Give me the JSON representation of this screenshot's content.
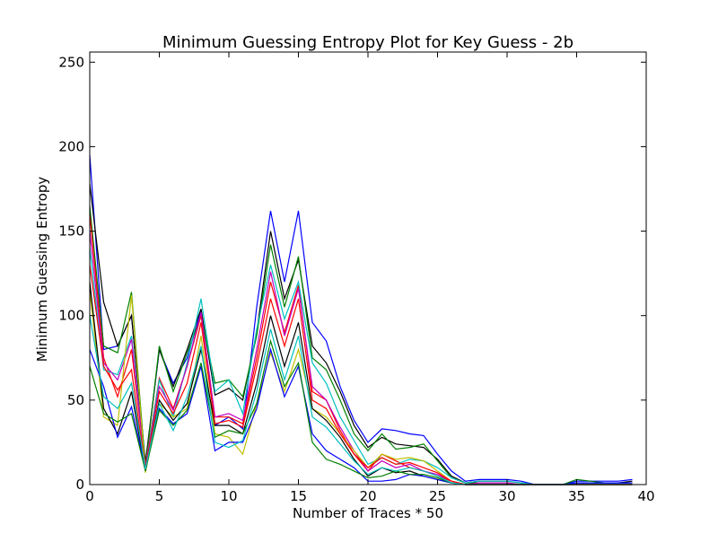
{
  "chart_data": {
    "type": "line",
    "title": "Minimum Guessing Entropy Plot for Key Guess - 2b",
    "xlabel": "Number of Traces * 50",
    "ylabel": "Minimum Guessing Entropy",
    "xlim": [
      0,
      40
    ],
    "ylim": [
      0,
      256
    ],
    "xticks": [
      "0",
      "5",
      "10",
      "15",
      "20",
      "25",
      "30",
      "35",
      "40"
    ],
    "yticks": [
      "0",
      "50",
      "100",
      "150",
      "200",
      "250"
    ],
    "grid": false,
    "legend": "none",
    "x": [
      0,
      1,
      2,
      3,
      4,
      5,
      6,
      7,
      8,
      9,
      10,
      11,
      12,
      13,
      14,
      15,
      16,
      17,
      18,
      19,
      20,
      21,
      22,
      23,
      24,
      25,
      26,
      27,
      28,
      29,
      30,
      31,
      32,
      33,
      34,
      35,
      36,
      37,
      38,
      39
    ],
    "series": [
      {
        "color": "#0000ff",
        "values": [
          195,
          80,
          82,
          100,
          12,
          80,
          60,
          75,
          103,
          35,
          40,
          33,
          105,
          162,
          120,
          162,
          96,
          85,
          58,
          38,
          25,
          33,
          32,
          30,
          29,
          18,
          8,
          2,
          3,
          3,
          3,
          2,
          0,
          0,
          0,
          2,
          2,
          2,
          2,
          3
        ]
      },
      {
        "color": "#000000",
        "values": [
          178,
          108,
          82,
          100,
          13,
          80,
          58,
          80,
          104,
          53,
          57,
          50,
          90,
          150,
          110,
          133,
          82,
          72,
          55,
          35,
          22,
          28,
          24,
          23,
          22,
          15,
          5,
          1,
          2,
          2,
          2,
          1,
          0,
          0,
          0,
          1,
          1,
          1,
          1,
          2
        ]
      },
      {
        "color": "#008000",
        "values": [
          165,
          82,
          78,
          114,
          10,
          82,
          55,
          78,
          100,
          60,
          62,
          52,
          88,
          142,
          105,
          135,
          75,
          68,
          50,
          30,
          20,
          30,
          21,
          22,
          24,
          14,
          4,
          1,
          1,
          1,
          1,
          0,
          0,
          0,
          0,
          3,
          2,
          1,
          1,
          1
        ]
      },
      {
        "color": "#ff0000",
        "values": [
          160,
          75,
          52,
          80,
          11,
          63,
          45,
          70,
          100,
          40,
          40,
          36,
          75,
          120,
          90,
          118,
          55,
          50,
          32,
          18,
          8,
          18,
          14,
          10,
          8,
          5,
          2,
          0,
          0,
          0,
          0,
          0,
          0,
          0,
          0,
          0,
          0,
          0,
          0,
          0
        ]
      },
      {
        "color": "#00bfbf",
        "values": [
          140,
          68,
          65,
          88,
          10,
          62,
          40,
          72,
          110,
          55,
          62,
          42,
          92,
          130,
          98,
          120,
          72,
          60,
          40,
          26,
          12,
          16,
          12,
          15,
          14,
          10,
          4,
          1,
          2,
          2,
          2,
          1,
          0,
          0,
          0,
          1,
          1,
          1,
          1,
          1
        ]
      },
      {
        "color": "#bf00bf",
        "values": [
          150,
          72,
          62,
          86,
          10,
          58,
          44,
          70,
          102,
          40,
          42,
          38,
          80,
          126,
          88,
          116,
          58,
          50,
          34,
          20,
          8,
          14,
          10,
          12,
          8,
          6,
          2,
          0,
          1,
          1,
          1,
          0,
          0,
          0,
          0,
          0,
          0,
          0,
          0,
          0
        ]
      },
      {
        "color": "#bfbf00",
        "values": [
          115,
          40,
          35,
          112,
          7,
          48,
          40,
          45,
          88,
          30,
          28,
          18,
          48,
          78,
          55,
          80,
          45,
          40,
          30,
          20,
          10,
          18,
          15,
          16,
          14,
          8,
          2,
          0,
          0,
          0,
          0,
          0,
          0,
          0,
          0,
          0,
          0,
          0,
          0,
          0
        ]
      },
      {
        "color": "#000000",
        "values": [
          120,
          45,
          30,
          55,
          8,
          50,
          38,
          48,
          80,
          35,
          35,
          30,
          60,
          100,
          70,
          96,
          45,
          38,
          28,
          15,
          5,
          10,
          7,
          8,
          5,
          3,
          1,
          0,
          0,
          0,
          0,
          0,
          0,
          0,
          0,
          0,
          0,
          0,
          0,
          0
        ]
      },
      {
        "color": "#0000ff",
        "values": [
          80,
          58,
          28,
          46,
          9,
          45,
          36,
          42,
          70,
          20,
          25,
          25,
          45,
          80,
          52,
          70,
          30,
          20,
          15,
          10,
          2,
          2,
          3,
          6,
          5,
          3,
          1,
          0,
          0,
          0,
          0,
          0,
          0,
          0,
          0,
          1,
          1,
          1,
          1,
          1
        ]
      },
      {
        "color": "#008000",
        "values": [
          70,
          42,
          37,
          42,
          8,
          44,
          35,
          44,
          72,
          28,
          32,
          30,
          48,
          85,
          58,
          72,
          25,
          15,
          12,
          8,
          4,
          5,
          8,
          6,
          6,
          4,
          1,
          0,
          0,
          0,
          0,
          0,
          0,
          0,
          0,
          0,
          0,
          0,
          0,
          0
        ]
      },
      {
        "color": "#ff0000",
        "values": [
          130,
          70,
          56,
          68,
          9,
          55,
          42,
          60,
          96,
          36,
          38,
          34,
          70,
          110,
          82,
          110,
          50,
          45,
          30,
          18,
          10,
          16,
          12,
          13,
          10,
          7,
          2,
          0,
          0,
          0,
          0,
          0,
          0,
          0,
          0,
          0,
          0,
          0,
          0,
          0
        ]
      },
      {
        "color": "#00bfbf",
        "values": [
          100,
          52,
          45,
          60,
          9,
          48,
          32,
          52,
          82,
          25,
          22,
          26,
          55,
          92,
          62,
          88,
          40,
          34,
          24,
          14,
          6,
          10,
          8,
          10,
          8,
          5,
          1,
          0,
          0,
          0,
          0,
          0,
          0,
          0,
          0,
          0,
          0,
          0,
          0,
          0
        ]
      }
    ]
  }
}
